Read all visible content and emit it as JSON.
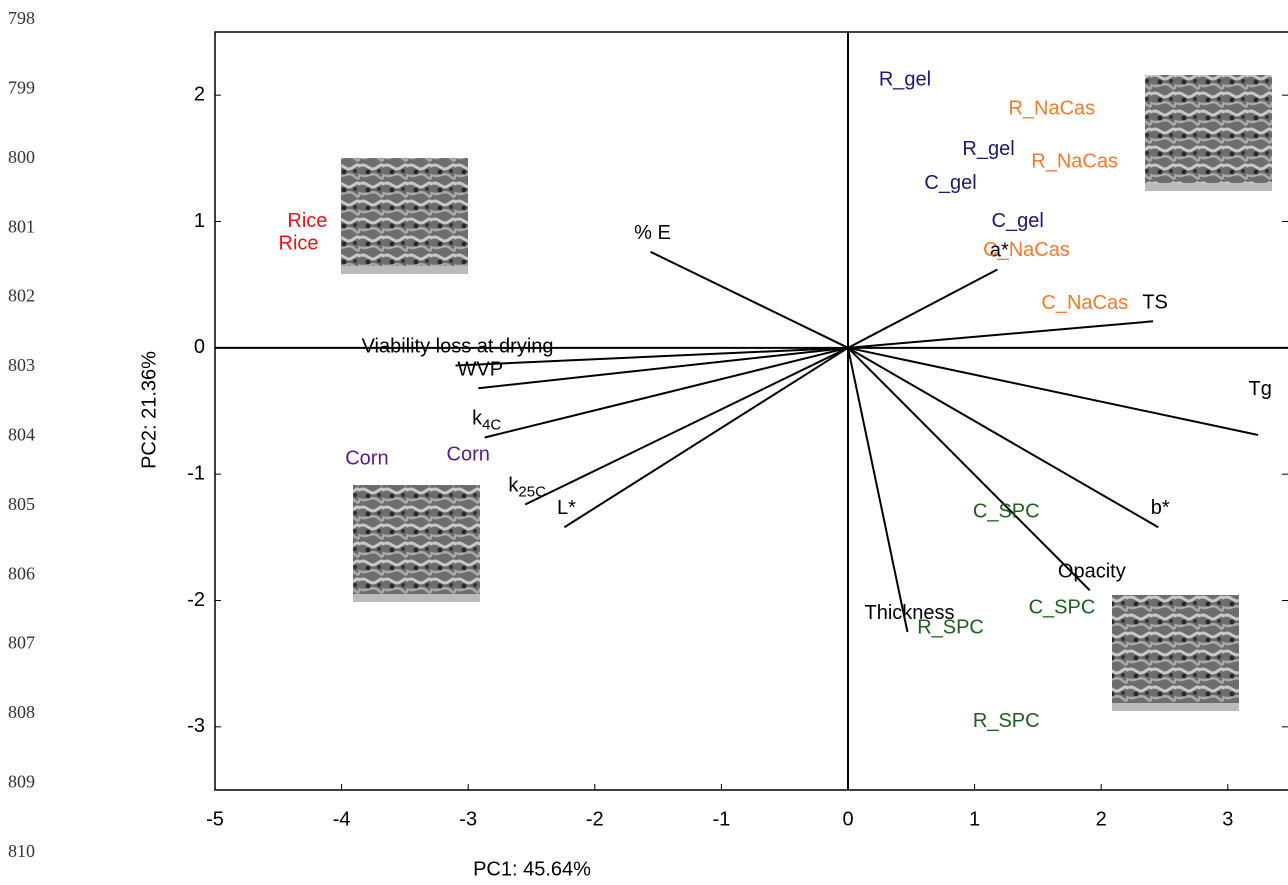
{
  "line_numbers": [
    "798",
    "799",
    "800",
    "801",
    "802",
    "803",
    "804",
    "805",
    "806",
    "807",
    "808",
    "809",
    "810"
  ],
  "chart_data": {
    "type": "biplot",
    "xlabel": "PC1: 45.64%",
    "ylabel": "PC2: 21.36%",
    "xlim": [
      -5,
      3.5
    ],
    "ylim": [
      -3.5,
      2.5
    ],
    "xticks": [
      -5,
      -4,
      -3,
      -2,
      -1,
      0,
      1,
      2,
      3
    ],
    "yticks": [
      -3,
      -2,
      -1,
      0,
      1,
      2
    ],
    "loading_color": "#000000",
    "loadings": [
      {
        "label": "% E",
        "x": -1.56,
        "y": 0.76
      },
      {
        "label": "Viability loss at drying",
        "x": -3.1,
        "y": -0.14
      },
      {
        "label": "WVP",
        "x": -2.92,
        "y": -0.32
      },
      {
        "label": "k",
        "subscript": "4C",
        "x": -2.87,
        "y": -0.71
      },
      {
        "label": "k",
        "subscript": "25C",
        "x": -2.55,
        "y": -1.24
      },
      {
        "label": "L*",
        "x": -2.24,
        "y": -1.42
      },
      {
        "label": "a*",
        "x": 1.18,
        "y": 0.62
      },
      {
        "label": "TS",
        "x": 2.41,
        "y": 0.21
      },
      {
        "label": "Tg",
        "x": 3.24,
        "y": -0.69
      },
      {
        "label": "b*",
        "x": 2.45,
        "y": -1.42
      },
      {
        "label": "Opacity",
        "x": 1.91,
        "y": -1.92
      },
      {
        "label": "Thickness",
        "x": 0.47,
        "y": -2.25
      }
    ],
    "scores": [
      {
        "label": "R_gel",
        "x": 0.45,
        "y": 2.12,
        "color": "#1a1a6e"
      },
      {
        "label": "R_NaCas",
        "x": 1.61,
        "y": 1.89,
        "color": "#f07a30"
      },
      {
        "label": "R_gel",
        "x": 1.11,
        "y": 1.57,
        "color": "#1a1a6e"
      },
      {
        "label": "R_NaCas",
        "x": 1.79,
        "y": 1.47,
        "color": "#f07a30"
      },
      {
        "label": "C_gel",
        "x": 0.81,
        "y": 1.3,
        "color": "#1a1a6e"
      },
      {
        "label": "C_gel",
        "x": 1.34,
        "y": 1.0,
        "color": "#1a1a6e"
      },
      {
        "label": "C_NaCas",
        "x": 1.41,
        "y": 0.77,
        "color": "#f07a30"
      },
      {
        "label": "C_NaCas",
        "x": 1.87,
        "y": 0.35,
        "color": "#f07a30"
      },
      {
        "label": "Rice",
        "x": -4.27,
        "y": 1.0,
        "color": "#e8141c"
      },
      {
        "label": "Rice",
        "x": -4.34,
        "y": 0.82,
        "color": "#e8141c"
      },
      {
        "label": "Corn",
        "x": -3.8,
        "y": -0.88,
        "color": "#5a1a8a"
      },
      {
        "label": "Corn",
        "x": -3.0,
        "y": -0.85,
        "color": "#5a1a8a"
      },
      {
        "label": "C_SPC",
        "x": 1.25,
        "y": -1.3,
        "color": "#1e5e1e"
      },
      {
        "label": "C_SPC",
        "x": 1.69,
        "y": -2.06,
        "color": "#1e5e1e"
      },
      {
        "label": "R_SPC",
        "x": 0.81,
        "y": -2.22,
        "color": "#1e5e1e"
      },
      {
        "label": "R_SPC",
        "x": 1.25,
        "y": -2.96,
        "color": "#1e5e1e"
      }
    ]
  }
}
